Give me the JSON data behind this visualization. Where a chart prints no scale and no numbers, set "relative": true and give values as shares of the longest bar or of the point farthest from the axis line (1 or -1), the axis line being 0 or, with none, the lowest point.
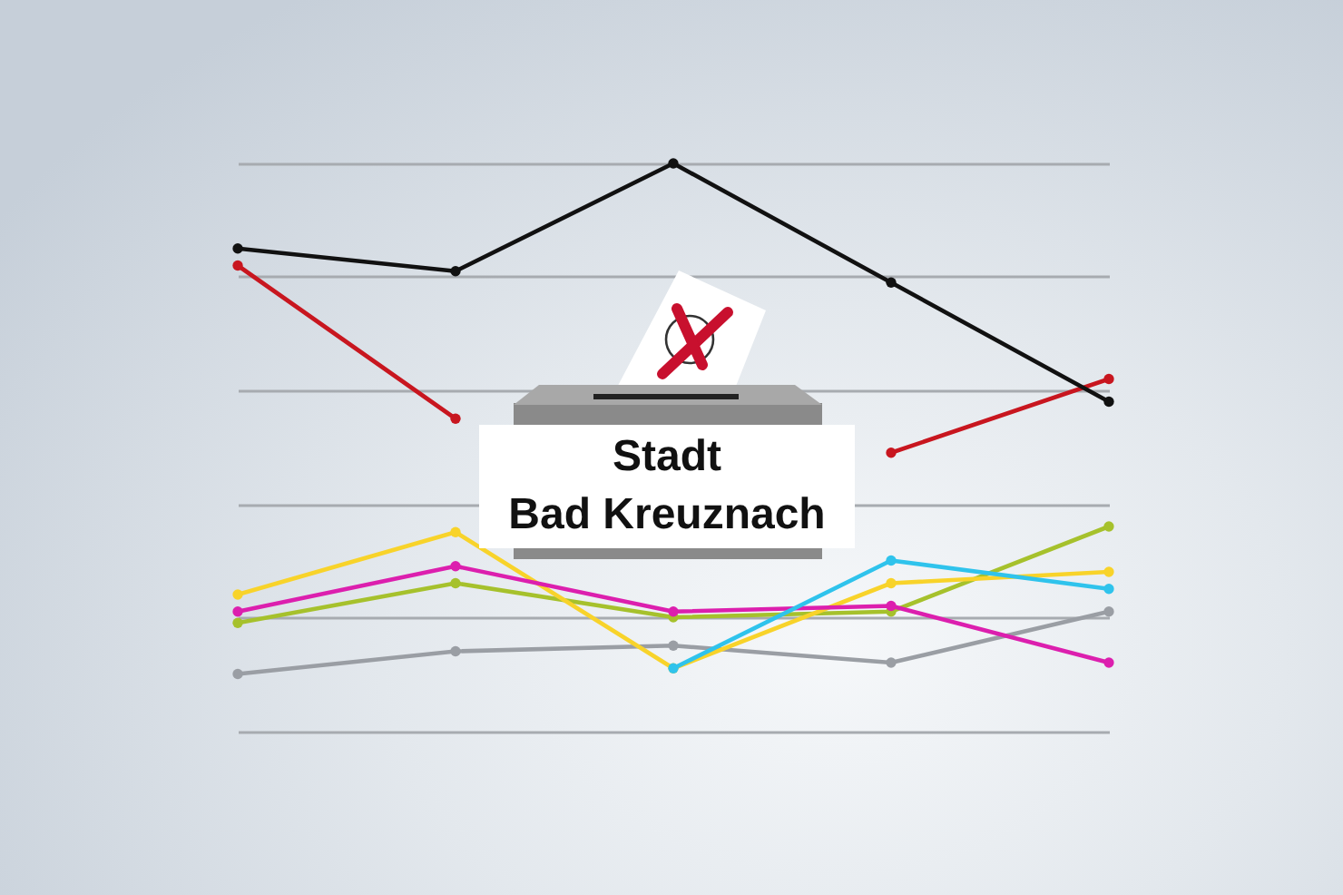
{
  "chart_data": {
    "type": "line",
    "title": "Stadt\nBad Kreuznach",
    "categories": [
      null,
      null,
      null,
      null,
      null
    ],
    "relative": true,
    "grid": "y",
    "marker": "circle",
    "line_style": "solid",
    "series": [
      {
        "color": "#9a9ea4",
        "values": [
          0.1,
          0.14,
          0.15,
          0.12,
          0.21
        ]
      },
      {
        "color": "#a6c12c",
        "values": [
          0.19,
          0.26,
          0.2,
          0.21,
          0.36
        ]
      },
      {
        "color": "#f8d32a",
        "values": [
          0.24,
          0.35,
          0.11,
          0.26,
          0.28
        ]
      },
      {
        "color": "#dc1fae",
        "values": [
          0.21,
          0.29,
          0.21,
          0.22,
          0.12
        ]
      },
      {
        "color": "#2fc3ec",
        "values": [
          null,
          null,
          0.11,
          0.3,
          0.25
        ]
      },
      {
        "color": "#c8161f",
        "values": [
          0.82,
          0.55,
          null,
          0.49,
          0.62
        ]
      },
      {
        "color": "#111111",
        "values": [
          0.85,
          0.81,
          1,
          0.79,
          0.58
        ]
      }
    ]
  }
}
